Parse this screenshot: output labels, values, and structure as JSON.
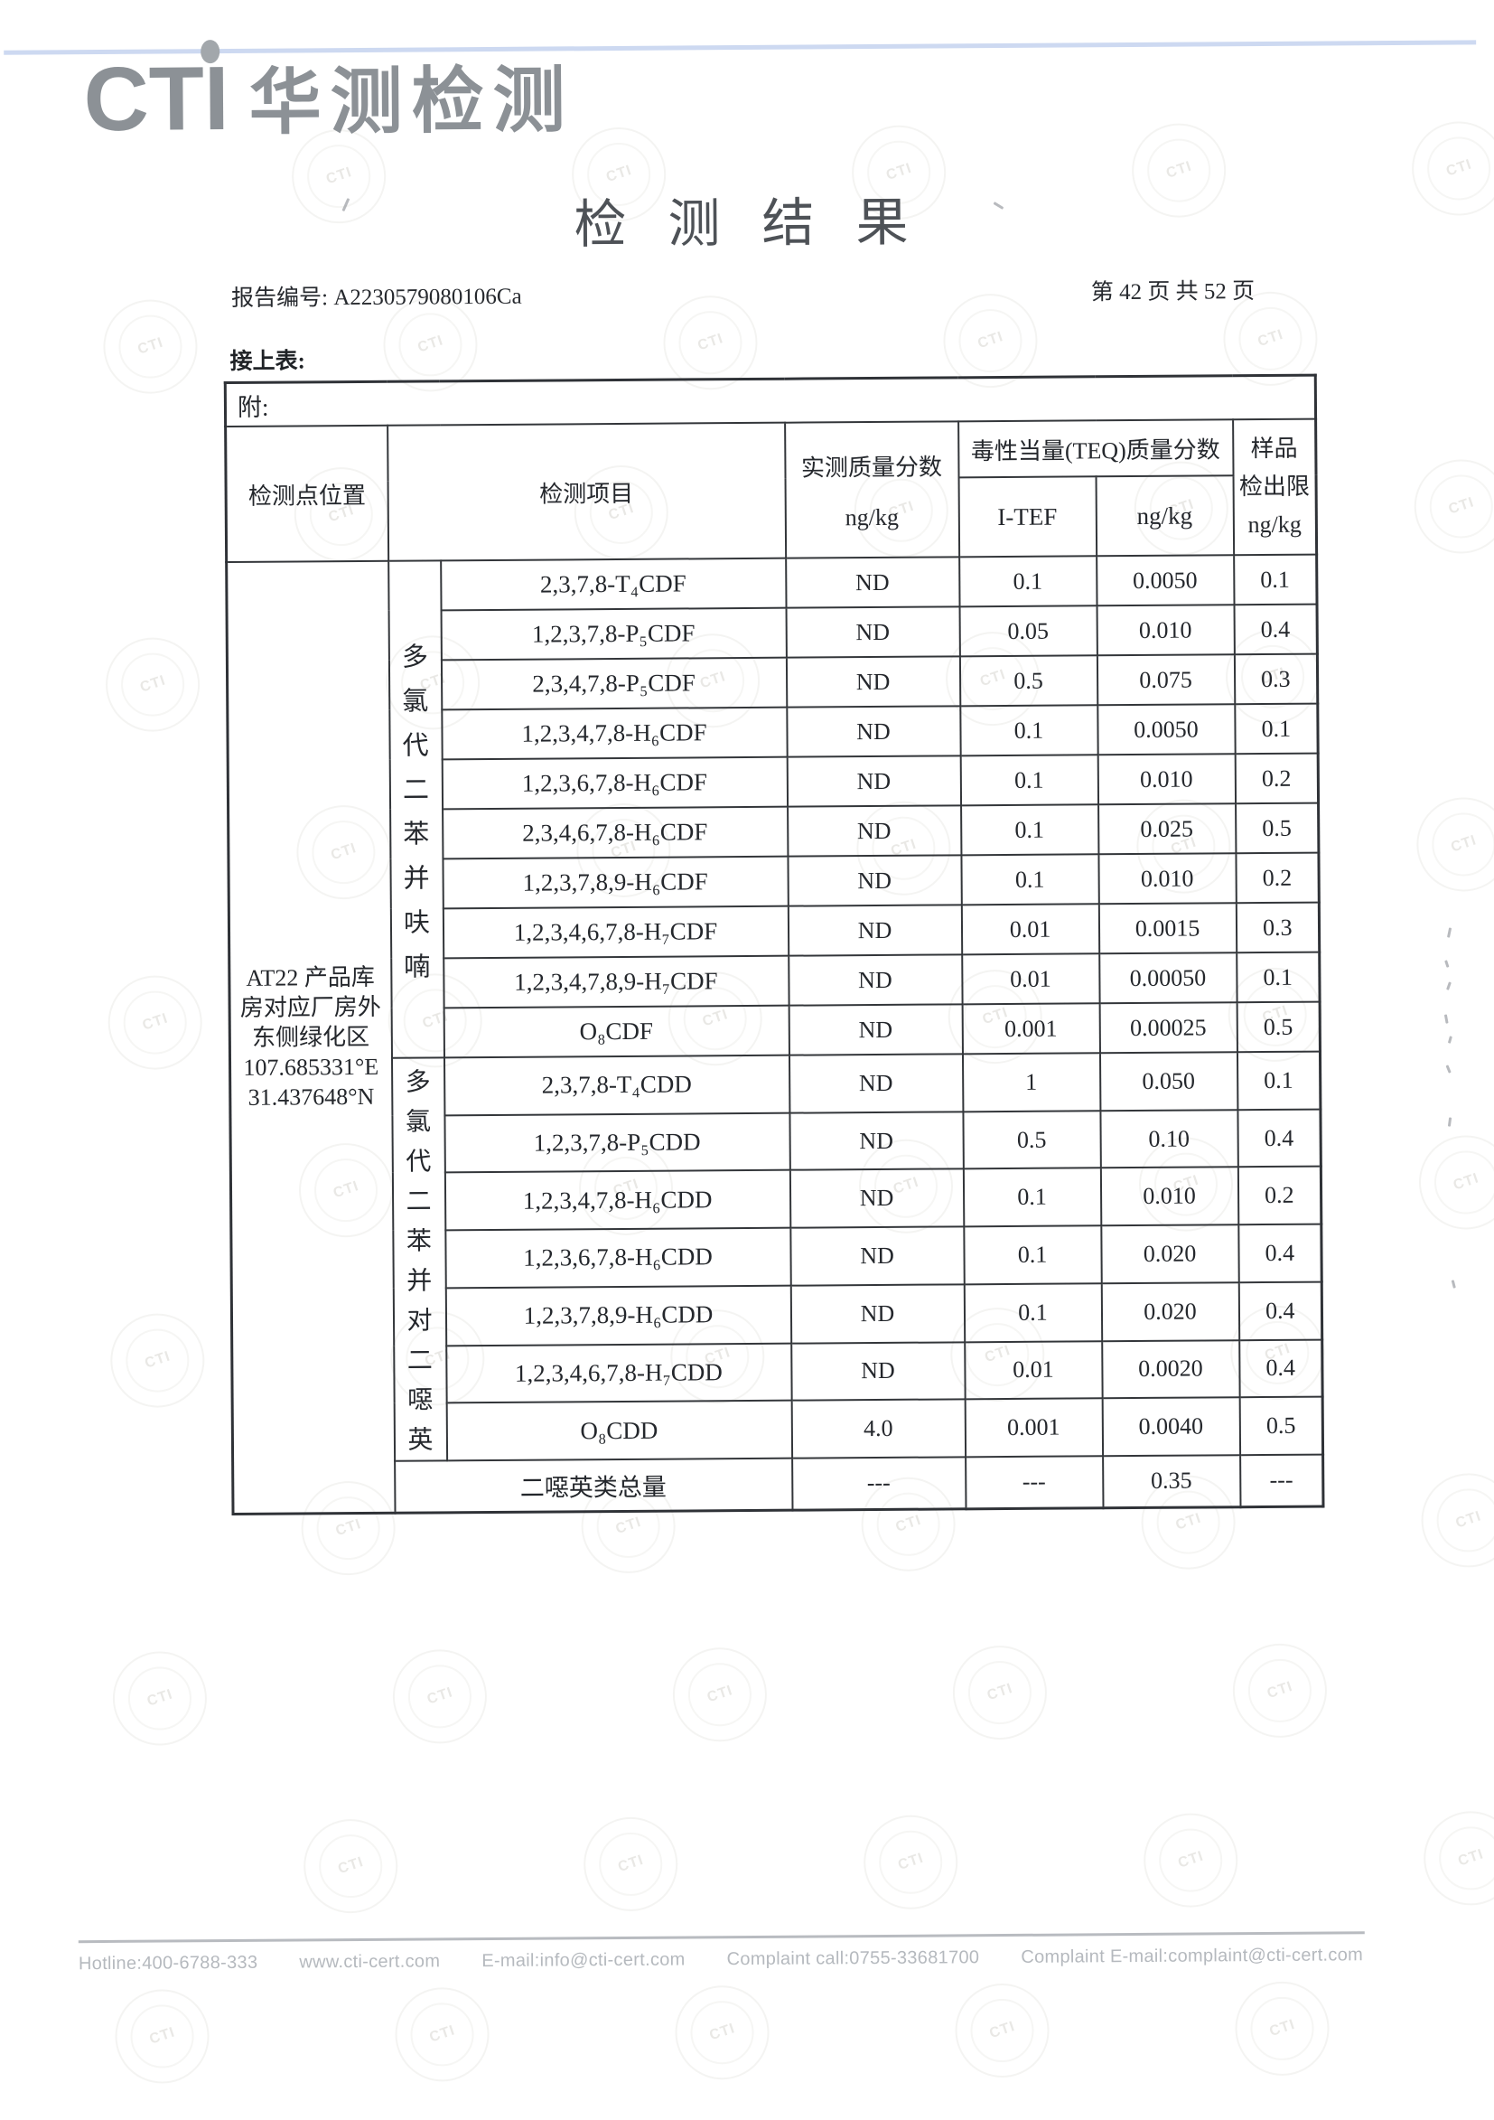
{
  "page": {
    "top_rule_color": "#cdd9f1",
    "logo": {
      "cti": "CTI",
      "name_cn": "华测检测"
    },
    "title": "检测结果",
    "report": {
      "label": "报告编号:",
      "number": "A2230579080106Ca"
    },
    "pagination": "第 42 页  共 52 页",
    "continued_label": "接上表:",
    "watermark_text": "CTI",
    "footer": {
      "hotline": "Hotline:400-6788-333",
      "website": "www.cti-cert.com",
      "email": "E-mail:info@cti-cert.com",
      "complaint_call": "Complaint call:0755-33681700",
      "complaint_email": "Complaint E-mail:complaint@cti-cert.com"
    }
  },
  "table": {
    "attachment_label": "附:",
    "header": {
      "location": "检测点位置",
      "item": "检测项目",
      "measured_title": "实测质量分数",
      "measured_unit": "ng/kg",
      "teq_title": "毒性当量(TEQ)质量分数",
      "teq_itef": "I-TEF",
      "teq_unit": "ng/kg",
      "lod_line1": "样品",
      "lod_line2": "检出限",
      "lod_unit": "ng/kg"
    },
    "location": {
      "lines": [
        "AT22 产品库",
        "房对应厂房外",
        "东侧绿化区",
        "107.685331°E",
        "31.437648°N"
      ]
    },
    "groups": [
      {
        "label": "多氯代二苯并呋喃",
        "row_span": 10
      },
      {
        "label": "多氯代二苯并对二噁英",
        "row_span": 7
      }
    ],
    "rows": [
      {
        "name": "2,3,7,8-T₄CDF",
        "measured": "ND",
        "itef": "0.1",
        "teq": "0.0050",
        "lod": "0.1"
      },
      {
        "name": "1,2,3,7,8-P₅CDF",
        "measured": "ND",
        "itef": "0.05",
        "teq": "0.010",
        "lod": "0.4"
      },
      {
        "name": "2,3,4,7,8-P₅CDF",
        "measured": "ND",
        "itef": "0.5",
        "teq": "0.075",
        "lod": "0.3"
      },
      {
        "name": "1,2,3,4,7,8-H₆CDF",
        "measured": "ND",
        "itef": "0.1",
        "teq": "0.0050",
        "lod": "0.1"
      },
      {
        "name": "1,2,3,6,7,8-H₆CDF",
        "measured": "ND",
        "itef": "0.1",
        "teq": "0.010",
        "lod": "0.2"
      },
      {
        "name": "2,3,4,6,7,8-H₆CDF",
        "measured": "ND",
        "itef": "0.1",
        "teq": "0.025",
        "lod": "0.5"
      },
      {
        "name": "1,2,3,7,8,9-H₆CDF",
        "measured": "ND",
        "itef": "0.1",
        "teq": "0.010",
        "lod": "0.2"
      },
      {
        "name": "1,2,3,4,6,7,8-H₇CDF",
        "measured": "ND",
        "itef": "0.01",
        "teq": "0.0015",
        "lod": "0.3"
      },
      {
        "name": "1,2,3,4,7,8,9-H₇CDF",
        "measured": "ND",
        "itef": "0.01",
        "teq": "0.00050",
        "lod": "0.1"
      },
      {
        "name": "O₈CDF",
        "measured": "ND",
        "itef": "0.001",
        "teq": "0.00025",
        "lod": "0.5"
      },
      {
        "name": "2,3,7,8-T₄CDD",
        "measured": "ND",
        "itef": "1",
        "teq": "0.050",
        "lod": "0.1"
      },
      {
        "name": "1,2,3,7,8-P₅CDD",
        "measured": "ND",
        "itef": "0.5",
        "teq": "0.10",
        "lod": "0.4"
      },
      {
        "name": "1,2,3,4,7,8-H₆CDD",
        "measured": "ND",
        "itef": "0.1",
        "teq": "0.010",
        "lod": "0.2"
      },
      {
        "name": "1,2,3,6,7,8-H₆CDD",
        "measured": "ND",
        "itef": "0.1",
        "teq": "0.020",
        "lod": "0.4"
      },
      {
        "name": "1,2,3,7,8,9-H₆CDD",
        "measured": "ND",
        "itef": "0.1",
        "teq": "0.020",
        "lod": "0.4"
      },
      {
        "name": "1,2,3,4,6,7,8-H₇CDD",
        "measured": "ND",
        "itef": "0.01",
        "teq": "0.0020",
        "lod": "0.4"
      },
      {
        "name": "O₈CDD",
        "measured": "4.0",
        "itef": "0.001",
        "teq": "0.0040",
        "lod": "0.5"
      }
    ],
    "total_row": {
      "name": "二噁英类总量",
      "measured": "---",
      "itef": "---",
      "teq": "0.35",
      "lod": "---"
    }
  }
}
